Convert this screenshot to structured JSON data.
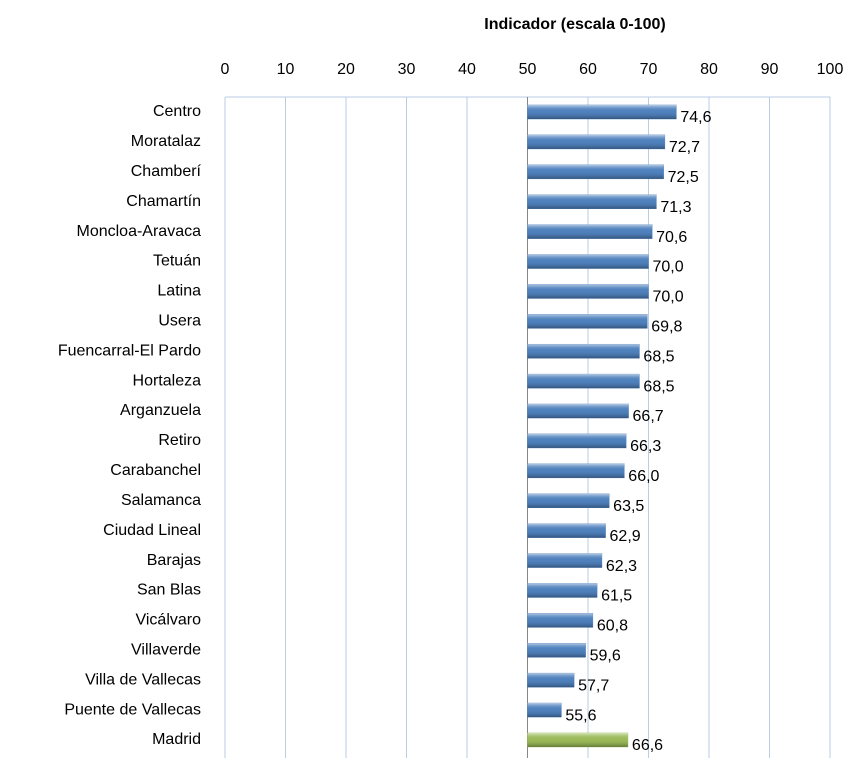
{
  "chart_data": {
    "type": "barh",
    "title": "Indicador (escala 0-100)",
    "categories": [
      "Centro",
      "Moratalaz",
      "Chamberí",
      "Chamartín",
      "Moncloa-Aravaca",
      "Tetuán",
      "Latina",
      "Usera",
      "Fuencarral-El Pardo",
      "Hortaleza",
      "Arganzuela",
      "Retiro",
      "Carabanchel",
      "Salamanca",
      "Ciudad Lineal",
      "Barajas",
      "San Blas",
      "Vicálvaro",
      "Villaverde",
      "Villa de Vallecas",
      "Puente de Vallecas",
      "Madrid"
    ],
    "values": [
      74.6,
      72.7,
      72.5,
      71.3,
      70.6,
      70.0,
      70.0,
      69.8,
      68.5,
      68.5,
      66.7,
      66.3,
      66.0,
      63.5,
      62.9,
      62.3,
      61.5,
      60.8,
      59.6,
      57.7,
      55.6,
      66.6
    ],
    "value_labels": [
      "74,6",
      "72,7",
      "72,5",
      "71,3",
      "70,6",
      "70,0",
      "70,0",
      "69,8",
      "68,5",
      "68,5",
      "66,7",
      "66,3",
      "66,0",
      "63,5",
      "62,9",
      "62,3",
      "61,5",
      "60,8",
      "59,6",
      "57,7",
      "55,6",
      "66,6"
    ],
    "colors": [
      "#4f81bd",
      "#4f81bd",
      "#4f81bd",
      "#4f81bd",
      "#4f81bd",
      "#4f81bd",
      "#4f81bd",
      "#4f81bd",
      "#4f81bd",
      "#4f81bd",
      "#4f81bd",
      "#4f81bd",
      "#4f81bd",
      "#4f81bd",
      "#4f81bd",
      "#4f81bd",
      "#4f81bd",
      "#4f81bd",
      "#4f81bd",
      "#4f81bd",
      "#4f81bd",
      "#9bbb59"
    ],
    "xlim": [
      0,
      100
    ],
    "xticks": [
      0,
      10,
      20,
      30,
      40,
      50,
      60,
      70,
      80,
      90,
      100
    ],
    "axis_crossing": 50,
    "grid": true
  }
}
